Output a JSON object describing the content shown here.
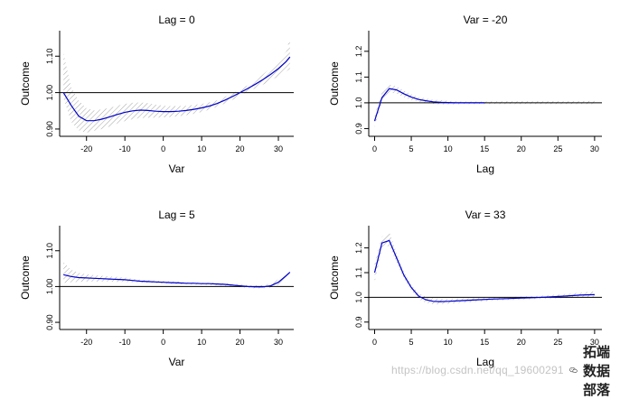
{
  "chart_data": [
    {
      "type": "line",
      "title": "Lag = 0",
      "xlabel": "Var",
      "ylabel": "Outcome",
      "xlim": [
        -27,
        34
      ],
      "ylim": [
        0.88,
        1.17
      ],
      "xticks": [
        -20,
        -10,
        0,
        10,
        20,
        30
      ],
      "xtick_labels": [
        "-20",
        "-10",
        "0",
        "10",
        "20",
        "30"
      ],
      "yticks": [
        0.9,
        1.0,
        1.1
      ],
      "ytick_labels": [
        "0.90",
        "1.00",
        "1.10"
      ],
      "reference_line": 1.0,
      "series": [
        {
          "name": "estimate",
          "color": "#0000cc",
          "x": [
            -26,
            -24,
            -22,
            -20,
            -18,
            -16,
            -14,
            -12,
            -10,
            -8,
            -6,
            -4,
            -2,
            0,
            2,
            4,
            6,
            8,
            10,
            12,
            14,
            16,
            18,
            20,
            22,
            24,
            26,
            28,
            30,
            32,
            33
          ],
          "y": [
            1.0,
            0.965,
            0.935,
            0.923,
            0.923,
            0.927,
            0.933,
            0.94,
            0.946,
            0.95,
            0.952,
            0.951,
            0.949,
            0.948,
            0.948,
            0.949,
            0.951,
            0.954,
            0.958,
            0.963,
            0.97,
            0.979,
            0.989,
            1.0,
            1.011,
            1.023,
            1.036,
            1.05,
            1.066,
            1.085,
            1.098
          ],
          "lower": [
            0.985,
            0.92,
            0.896,
            0.89,
            0.895,
            0.9,
            0.907,
            0.915,
            0.922,
            0.927,
            0.93,
            0.931,
            0.931,
            0.932,
            0.933,
            0.935,
            0.938,
            0.942,
            0.947,
            0.953,
            0.961,
            0.97,
            0.98,
            0.993,
            1.002,
            1.012,
            1.022,
            1.033,
            1.045,
            1.058,
            1.065
          ],
          "upper": [
            1.11,
            1.015,
            0.978,
            0.957,
            0.951,
            0.954,
            0.958,
            0.964,
            0.969,
            0.972,
            0.973,
            0.971,
            0.967,
            0.964,
            0.963,
            0.963,
            0.964,
            0.966,
            0.969,
            0.973,
            0.979,
            0.988,
            0.998,
            1.008,
            1.02,
            1.034,
            1.05,
            1.068,
            1.088,
            1.112,
            1.15
          ]
        }
      ]
    },
    {
      "type": "line",
      "title": "Var = -20",
      "xlabel": "Lag",
      "ylabel": "Outcome",
      "xlim": [
        -0.8,
        31
      ],
      "ylim": [
        0.87,
        1.28
      ],
      "xticks": [
        0,
        5,
        10,
        15,
        20,
        25,
        30
      ],
      "xtick_labels": [
        "0",
        "5",
        "10",
        "15",
        "20",
        "25",
        "30"
      ],
      "yticks": [
        0.9,
        1.0,
        1.1,
        1.2
      ],
      "ytick_labels": [
        "0.9",
        "1.0",
        "1.1",
        "1.2"
      ],
      "reference_line": 1.0,
      "series": [
        {
          "name": "estimate",
          "color": "#0000cc",
          "x": [
            0,
            1,
            2,
            3,
            4,
            5,
            6,
            7,
            8,
            9,
            10,
            11,
            12,
            13,
            14,
            15
          ],
          "y": [
            0.93,
            1.02,
            1.055,
            1.05,
            1.035,
            1.022,
            1.013,
            1.008,
            1.004,
            1.002,
            1.001,
            1.0,
            1.0,
            1.0,
            1.0,
            1.0
          ],
          "lower": [
            0.905,
            1.0,
            1.04,
            1.036,
            1.022,
            1.011,
            1.004,
            0.999,
            0.996,
            0.994,
            0.994,
            0.994,
            0.995,
            0.995,
            0.995,
            0.995
          ],
          "upper": [
            0.955,
            1.04,
            1.07,
            1.064,
            1.048,
            1.033,
            1.022,
            1.017,
            1.012,
            1.01,
            1.008,
            1.006,
            1.005,
            1.005,
            1.005,
            1.005
          ]
        },
        {
          "name": "band-tail",
          "color": "#0000cc",
          "x": [
            15,
            18,
            21,
            24,
            27,
            30
          ],
          "y": [
            1.0,
            1.0,
            1.0,
            1.0,
            1.0,
            1.0
          ],
          "lower": [
            0.995,
            0.995,
            0.995,
            0.995,
            0.995,
            0.995
          ],
          "upper": [
            1.005,
            1.006,
            1.006,
            1.006,
            1.006,
            1.007
          ],
          "line_visible": false
        }
      ]
    },
    {
      "type": "line",
      "title": "Lag = 5",
      "xlabel": "Var",
      "ylabel": "Outcome",
      "xlim": [
        -27,
        34
      ],
      "ylim": [
        0.88,
        1.17
      ],
      "xticks": [
        -20,
        -10,
        0,
        10,
        20,
        30
      ],
      "xtick_labels": [
        "-20",
        "-10",
        "0",
        "10",
        "20",
        "30"
      ],
      "yticks": [
        0.9,
        1.0,
        1.1
      ],
      "ytick_labels": [
        "0.90",
        "1.00",
        "1.10"
      ],
      "reference_line": 1.0,
      "series": [
        {
          "name": "estimate",
          "color": "#0000cc",
          "x": [
            -26,
            -24,
            -22,
            -20,
            -18,
            -16,
            -14,
            -12,
            -10,
            -8,
            -6,
            -4,
            -2,
            0,
            2,
            4,
            6,
            8,
            10,
            12,
            14,
            16,
            18,
            20,
            22,
            24,
            26,
            28,
            30,
            32,
            33
          ],
          "y": [
            1.033,
            1.028,
            1.025,
            1.024,
            1.023,
            1.022,
            1.021,
            1.02,
            1.019,
            1.017,
            1.015,
            1.014,
            1.013,
            1.012,
            1.011,
            1.01,
            1.009,
            1.009,
            1.008,
            1.008,
            1.007,
            1.006,
            1.004,
            1.002,
            1.0,
            0.999,
            0.999,
            1.002,
            1.012,
            1.03,
            1.04
          ],
          "lower": [
            1.01,
            1.012,
            1.013,
            1.014,
            1.014,
            1.014,
            1.014,
            1.013,
            1.013,
            1.012,
            1.011,
            1.01,
            1.009,
            1.008,
            1.007,
            1.006,
            1.006,
            1.005,
            1.005,
            1.004,
            1.003,
            1.002,
            1.0,
            0.998,
            0.996,
            0.995,
            0.995,
            0.997,
            1.005,
            1.02,
            1.028
          ],
          "upper": [
            1.068,
            1.047,
            1.038,
            1.034,
            1.032,
            1.03,
            1.028,
            1.027,
            1.025,
            1.022,
            1.019,
            1.018,
            1.017,
            1.016,
            1.015,
            1.014,
            1.012,
            1.012,
            1.011,
            1.011,
            1.01,
            1.009,
            1.008,
            1.006,
            1.004,
            1.003,
            1.004,
            1.008,
            1.02,
            1.04,
            1.052
          ]
        }
      ]
    },
    {
      "type": "line",
      "title": "Var = 33",
      "xlabel": "Lag",
      "ylabel": "Outcome",
      "xlim": [
        -0.8,
        31
      ],
      "ylim": [
        0.87,
        1.29
      ],
      "xticks": [
        0,
        5,
        10,
        15,
        20,
        25,
        30
      ],
      "xtick_labels": [
        "0",
        "5",
        "10",
        "15",
        "20",
        "25",
        "30"
      ],
      "yticks": [
        0.9,
        1.0,
        1.1,
        1.2
      ],
      "ytick_labels": [
        "0.9",
        "1.0",
        "1.1",
        "1.2"
      ],
      "reference_line": 1.0,
      "series": [
        {
          "name": "estimate",
          "color": "#0000cc",
          "x": [
            0,
            1,
            2,
            3,
            4,
            5,
            6,
            7,
            8,
            9,
            10,
            12,
            14,
            16,
            18,
            20,
            22,
            24,
            26,
            28,
            30
          ],
          "y": [
            1.1,
            1.22,
            1.23,
            1.16,
            1.09,
            1.04,
            1.005,
            0.99,
            0.984,
            0.983,
            0.984,
            0.987,
            0.99,
            0.993,
            0.995,
            0.997,
            0.999,
            1.002,
            1.005,
            1.009,
            1.011
          ],
          "lower": [
            1.06,
            1.195,
            1.21,
            1.14,
            1.075,
            1.028,
            0.993,
            0.978,
            0.972,
            0.972,
            0.974,
            0.978,
            0.982,
            0.986,
            0.989,
            0.991,
            0.993,
            0.995,
            0.997,
            0.999,
            1.0
          ],
          "upper": [
            1.14,
            1.245,
            1.265,
            1.18,
            1.105,
            1.052,
            1.017,
            1.002,
            0.996,
            0.994,
            0.994,
            0.996,
            0.998,
            1.0,
            1.001,
            1.003,
            1.005,
            1.009,
            1.013,
            1.019,
            1.024
          ]
        }
      ]
    }
  ],
  "watermark": {
    "url_text": "https://blog.csdn.net/qq_19600291",
    "brand_text": "拓端数据部落"
  }
}
